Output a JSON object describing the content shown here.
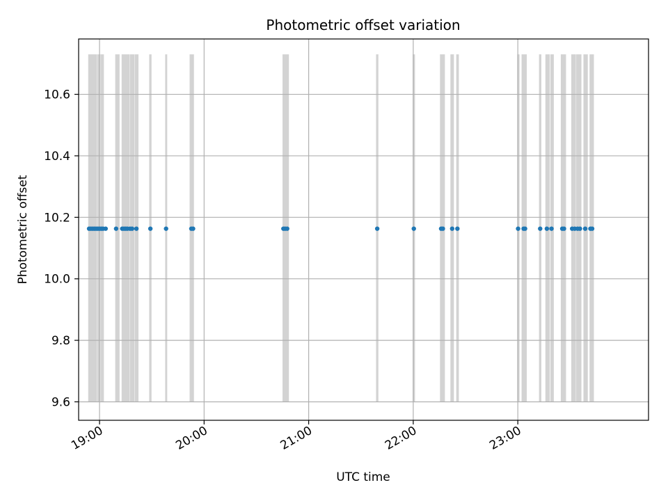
{
  "chart_data": {
    "type": "scatter",
    "title": "Photometric offset variation",
    "xlabel": "UTC time",
    "ylabel": "Photometric offset",
    "x_unit": "UTC time of day (HH:MM)",
    "xlim": [
      "18:48",
      "24:15"
    ],
    "ylim": [
      9.54,
      10.78
    ],
    "grid": true,
    "x_ticks": [
      "19:00",
      "20:00",
      "21:00",
      "22:00",
      "23:00"
    ],
    "y_ticks": [
      "9.6",
      "9.8",
      "10.0",
      "10.2",
      "10.4",
      "10.6"
    ],
    "y_tick_values": [
      9.6,
      9.8,
      10.0,
      10.2,
      10.4,
      10.6
    ],
    "colors": {
      "points": "#1f77b4",
      "bands": "#d3d3d3",
      "grid": "#b0b0b0"
    },
    "exposure_band_range": [
      9.6,
      10.73
    ],
    "exposure_bands": [
      [
        "18:53:30",
        "18:58:30"
      ],
      [
        "18:58:40",
        "19:00:20"
      ],
      [
        "19:00:30",
        "19:02:30"
      ],
      [
        "19:09:00",
        "19:11:30"
      ],
      [
        "19:12:40",
        "19:17:20"
      ],
      [
        "19:17:30",
        "19:20:10"
      ],
      [
        "19:20:20",
        "19:22:20"
      ],
      [
        "19:28:30",
        "19:29:50"
      ],
      [
        "19:37:40",
        "19:38:50"
      ],
      [
        "19:51:40",
        "19:54:10"
      ],
      [
        "20:45:00",
        "20:48:40"
      ],
      [
        "21:38:40",
        "21:40:00"
      ],
      [
        "21:59:40",
        "22:01:00"
      ],
      [
        "22:15:20",
        "22:18:10"
      ],
      [
        "22:21:20",
        "22:23:20"
      ],
      [
        "22:24:40",
        "22:26:10"
      ],
      [
        "22:59:40",
        "23:01:00"
      ],
      [
        "23:02:10",
        "23:05:10"
      ],
      [
        "23:12:10",
        "23:13:30"
      ],
      [
        "23:15:50",
        "23:18:20"
      ],
      [
        "23:18:40",
        "23:20:40"
      ],
      [
        "23:24:40",
        "23:27:40"
      ],
      [
        "23:30:40",
        "23:33:20"
      ],
      [
        "23:33:30",
        "23:36:30"
      ],
      [
        "23:37:40",
        "23:40:10"
      ],
      [
        "23:41:10",
        "23:43:40"
      ]
    ],
    "series": [
      {
        "y": 10.163,
        "x": [
          "18:54:00",
          "18:55:00",
          "18:56:00",
          "18:57:00",
          "18:58:00",
          "18:59:00",
          "19:00:00",
          "19:01:00",
          "19:02:00",
          "19:03:30",
          "19:09:30",
          "19:13:00",
          "19:14:00",
          "19:15:00",
          "19:16:00",
          "19:17:30",
          "19:18:40",
          "19:21:10",
          "19:29:10",
          "19:38:10",
          "19:52:40",
          "19:53:40",
          "20:45:30",
          "20:46:30",
          "20:47:40",
          "21:39:20",
          "22:00:20",
          "22:16:00",
          "22:17:00",
          "22:22:20",
          "22:25:20",
          "23:00:10",
          "23:03:20",
          "23:04:10",
          "23:12:50",
          "23:16:40",
          "23:19:20",
          "23:25:30",
          "23:26:30",
          "23:31:10",
          "23:32:40",
          "23:34:20",
          "23:35:40",
          "23:38:40",
          "23:41:40",
          "23:42:40"
        ]
      }
    ]
  }
}
